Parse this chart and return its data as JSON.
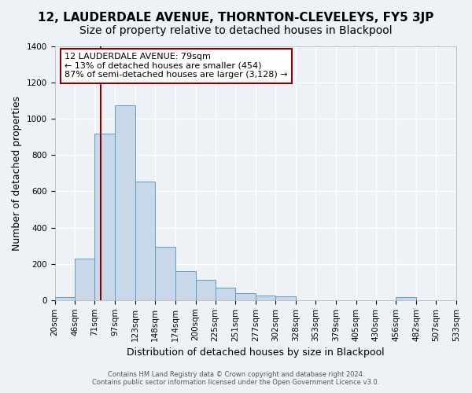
{
  "title": "12, LAUDERDALE AVENUE, THORNTON-CLEVELEYS, FY5 3JP",
  "subtitle": "Size of property relative to detached houses in Blackpool",
  "xlabel": "Distribution of detached houses by size in Blackpool",
  "ylabel": "Number of detached properties",
  "footer_line1": "Contains HM Land Registry data © Crown copyright and database right 2024.",
  "footer_line2": "Contains public sector information licensed under the Open Government Licence v3.0.",
  "annotation_line1": "12 LAUDERDALE AVENUE: 79sqm",
  "annotation_line2": "← 13% of detached houses are smaller (454)",
  "annotation_line3": "87% of semi-detached houses are larger (3,128) →",
  "bar_edges": [
    20,
    46,
    71,
    97,
    123,
    148,
    174,
    200,
    225,
    251,
    277,
    302,
    328,
    353,
    379,
    405,
    430,
    456,
    482,
    507,
    533
  ],
  "bar_heights": [
    15,
    228,
    920,
    1075,
    655,
    295,
    160,
    110,
    70,
    40,
    25,
    20,
    0,
    0,
    0,
    0,
    0,
    15,
    0,
    0
  ],
  "bar_color": "#c8d8e8",
  "bar_edge_color": "#5a9ec8",
  "vline_x": 79,
  "vline_color": "#8b0000",
  "annotation_box_color": "#ffffff",
  "annotation_box_edge": "#8b0000",
  "ylim": [
    0,
    1400
  ],
  "yticks": [
    0,
    200,
    400,
    600,
    800,
    1000,
    1200,
    1400
  ],
  "tick_labels": [
    "20sqm",
    "46sqm",
    "71sqm",
    "97sqm",
    "123sqm",
    "148sqm",
    "174sqm",
    "200sqm",
    "225sqm",
    "251sqm",
    "277sqm",
    "302sqm",
    "328sqm",
    "353sqm",
    "379sqm",
    "405sqm",
    "430sqm",
    "456sqm",
    "482sqm",
    "507sqm",
    "533sqm"
  ],
  "bg_color": "#eef2f7",
  "grid_color": "#ffffff",
  "title_fontsize": 11,
  "subtitle_fontsize": 10,
  "axis_label_fontsize": 9,
  "tick_fontsize": 7.5
}
